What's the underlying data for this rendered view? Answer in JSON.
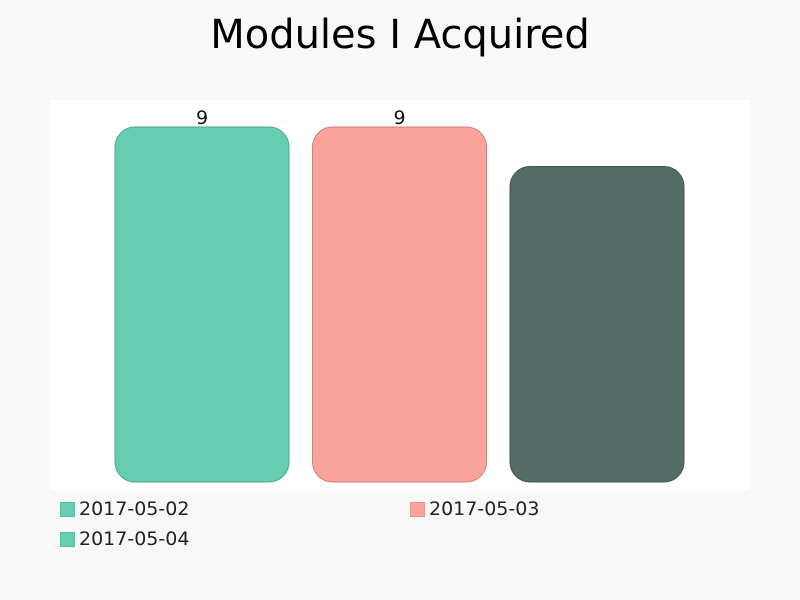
{
  "chart_data": {
    "type": "bar",
    "title": "Modules I Acquired",
    "categories": [
      "2017-05-02",
      "2017-05-03",
      "2017-05-04"
    ],
    "values": [
      9,
      9,
      8
    ],
    "data_labels": [
      "9",
      "9",
      ""
    ],
    "colors": [
      "#66cdb0",
      "#f9a39c",
      "#536d66"
    ],
    "ylim": [
      0,
      9
    ],
    "grid": false,
    "legend": {
      "placement": "bottom",
      "entries": [
        {
          "label": "2017-05-02",
          "color": "#66cdb0"
        },
        {
          "label": "2017-05-03",
          "color": "#f9a39c"
        },
        {
          "label": "2017-05-04",
          "color": "#66cdb0"
        }
      ]
    }
  }
}
